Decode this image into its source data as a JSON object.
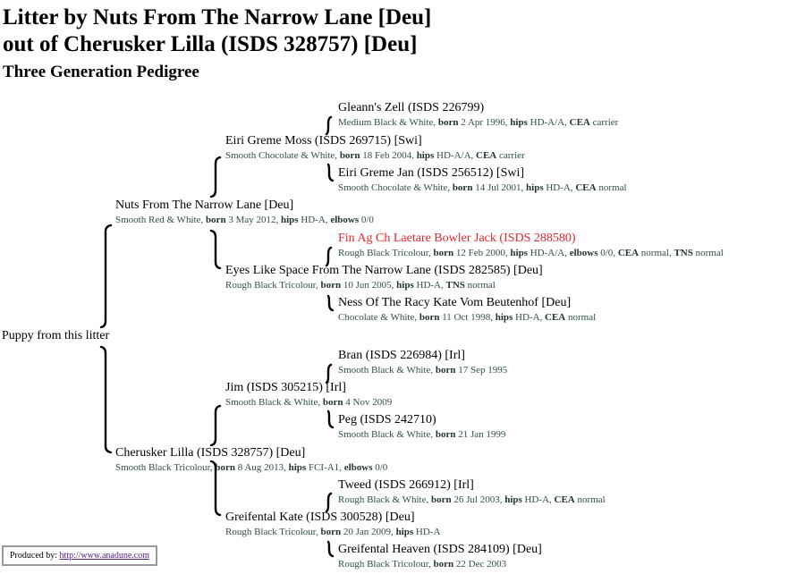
{
  "header": {
    "title_line1": "Litter by Nuts From The Narrow Lane [Deu]",
    "title_line2": "out of Cherusker Lilla (ISDS 328757) [Deu]",
    "subtitle": "Three Generation Pedigree"
  },
  "puppy": "Puppy from this litter",
  "dogs": [
    {
      "id": "gleann",
      "name": "Gleann's Zell (ISDS 226799)",
      "details": [
        [
          "t",
          "Medium Black & White, "
        ],
        [
          "b",
          "born"
        ],
        [
          "t",
          " 2 Apr 1996, "
        ],
        [
          "b",
          "hips"
        ],
        [
          "t",
          " HD-A/A, "
        ],
        [
          "b",
          "CEA"
        ],
        [
          "t",
          " carrier"
        ]
      ]
    },
    {
      "id": "eiri-moss",
      "name": "Eiri Greme Moss (ISDS 269715) [Swi]",
      "details": [
        [
          "t",
          "Smooth Chocolate & White, "
        ],
        [
          "b",
          "born"
        ],
        [
          "t",
          " 18 Feb 2004, "
        ],
        [
          "b",
          "hips"
        ],
        [
          "t",
          " HD-A/A, "
        ],
        [
          "b",
          "CEA"
        ],
        [
          "t",
          " carrier"
        ]
      ]
    },
    {
      "id": "eiri-jan",
      "name": "Eiri Greme Jan (ISDS 256512) [Swi]",
      "details": [
        [
          "t",
          "Smooth Chocolate & White, "
        ],
        [
          "b",
          "born"
        ],
        [
          "t",
          " 14 Jul 2001, "
        ],
        [
          "b",
          "hips"
        ],
        [
          "t",
          " HD-A, "
        ],
        [
          "b",
          "CEA"
        ],
        [
          "t",
          " normal"
        ]
      ]
    },
    {
      "id": "nuts",
      "name": "Nuts From The Narrow Lane [Deu]",
      "details": [
        [
          "t",
          "Smooth Red & White, "
        ],
        [
          "b",
          "born"
        ],
        [
          "t",
          " 3 May 2012, "
        ],
        [
          "b",
          "hips"
        ],
        [
          "t",
          " HD-A, "
        ],
        [
          "b",
          "elbows"
        ],
        [
          "t",
          " 0/0"
        ]
      ]
    },
    {
      "id": "fin",
      "name": "Fin Ag Ch Laetare Bowler Jack (ISDS 288580)",
      "highlight": true,
      "details": [
        [
          "t",
          "Rough Black Tricolour, "
        ],
        [
          "b",
          "born"
        ],
        [
          "t",
          " 12 Feb 2000, "
        ],
        [
          "b",
          "hips"
        ],
        [
          "t",
          " HD-A/A, "
        ],
        [
          "b",
          "elbows"
        ],
        [
          "t",
          " 0/0, "
        ],
        [
          "b",
          "CEA"
        ],
        [
          "t",
          " normal, "
        ],
        [
          "b",
          "TNS"
        ],
        [
          "t",
          " normal"
        ]
      ]
    },
    {
      "id": "eyes",
      "name": "Eyes Like Space From The Narrow Lane (ISDS 282585) [Deu]",
      "details": [
        [
          "t",
          "Rough Black Tricolour, "
        ],
        [
          "b",
          "born"
        ],
        [
          "t",
          " 10 Jun 2005, "
        ],
        [
          "b",
          "hips"
        ],
        [
          "t",
          " HD-A, "
        ],
        [
          "b",
          "TNS"
        ],
        [
          "t",
          " normal"
        ]
      ]
    },
    {
      "id": "ness",
      "name": "Ness Of The Racy Kate Vom Beutenhof [Deu]",
      "details": [
        [
          "t",
          "Chocolate & White, "
        ],
        [
          "b",
          "born"
        ],
        [
          "t",
          " 11 Oct 1998, "
        ],
        [
          "b",
          "hips"
        ],
        [
          "t",
          " HD-A, "
        ],
        [
          "b",
          "CEA"
        ],
        [
          "t",
          " normal"
        ]
      ]
    },
    {
      "id": "bran",
      "name": "Bran (ISDS 226984) [Irl]",
      "details": [
        [
          "t",
          "Smooth Black & White, "
        ],
        [
          "b",
          "born"
        ],
        [
          "t",
          " 17 Sep 1995"
        ]
      ]
    },
    {
      "id": "jim",
      "name": "Jim (ISDS 305215) [Irl]",
      "details": [
        [
          "t",
          "Smooth Black & White, "
        ],
        [
          "b",
          "born"
        ],
        [
          "t",
          " 4 Nov 2009"
        ]
      ]
    },
    {
      "id": "peg",
      "name": "Peg (ISDS 242710)",
      "details": [
        [
          "t",
          "Smooth Black & White, "
        ],
        [
          "b",
          "born"
        ],
        [
          "t",
          " 21 Jan 1999"
        ]
      ]
    },
    {
      "id": "cherusker",
      "name": "Cherusker Lilla (ISDS 328757) [Deu]",
      "details": [
        [
          "t",
          "Smooth Black Tricolour, "
        ],
        [
          "b",
          "born"
        ],
        [
          "t",
          " 8 Aug 2013, "
        ],
        [
          "b",
          "hips"
        ],
        [
          "t",
          " FCI-A1, "
        ],
        [
          "b",
          "elbows"
        ],
        [
          "t",
          " 0/0"
        ]
      ]
    },
    {
      "id": "tweed",
      "name": "Tweed (ISDS 266912) [Irl]",
      "details": [
        [
          "t",
          "Rough Black & White, "
        ],
        [
          "b",
          "born"
        ],
        [
          "t",
          " 26 Jul 2003, "
        ],
        [
          "b",
          "hips"
        ],
        [
          "t",
          " HD-A, "
        ],
        [
          "b",
          "CEA"
        ],
        [
          "t",
          " normal"
        ]
      ]
    },
    {
      "id": "greifental-kate",
      "name": "Greifental Kate (ISDS 300528) [Deu]",
      "details": [
        [
          "t",
          "Rough Black Tricolour, "
        ],
        [
          "b",
          "born"
        ],
        [
          "t",
          " 20 Jan 2009, "
        ],
        [
          "b",
          "hips"
        ],
        [
          "t",
          " HD-A"
        ]
      ]
    },
    {
      "id": "greifental-heaven",
      "name": "Greifental Heaven (ISDS 284109) [Deu]",
      "details": [
        [
          "t",
          "Rough Black Tricolour, "
        ],
        [
          "b",
          "born"
        ],
        [
          "t",
          " 22 Dec 2003"
        ]
      ]
    }
  ],
  "footer": {
    "label": "Produced by: ",
    "link": "http://www.anadune.com"
  },
  "colors": {
    "highlight": "#e8262b",
    "details": "#2f4f4f",
    "link": "#551a8b"
  }
}
